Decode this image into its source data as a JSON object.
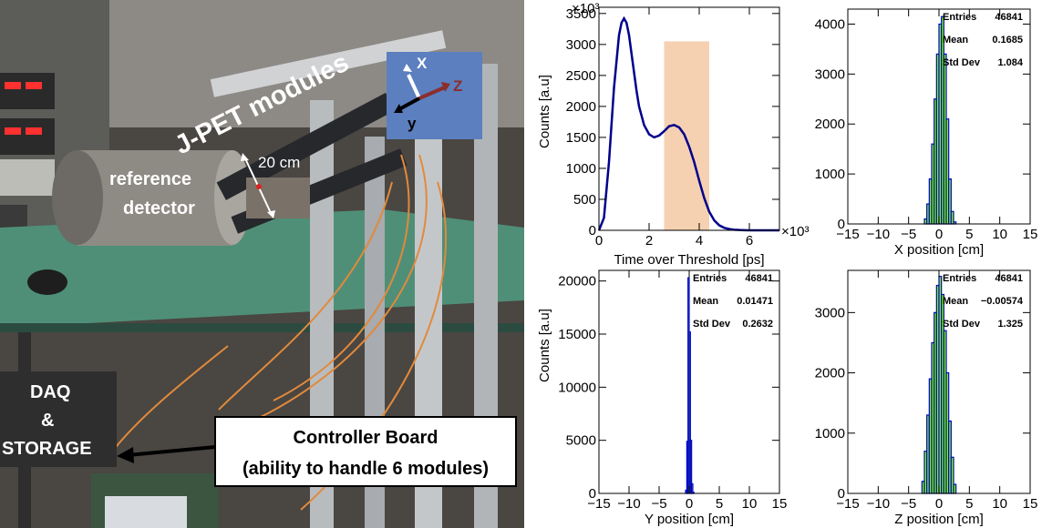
{
  "photo": {
    "label_modules": "J-PET modules",
    "label_distance": "20 cm",
    "label_reference": [
      "reference",
      "detector"
    ],
    "label_daq": [
      "DAQ",
      "&",
      "STORAGE"
    ],
    "label_controller": [
      "Controller Board",
      "(ability to handle 6 modules)"
    ],
    "axes_labels": {
      "x": "X",
      "y": "y",
      "z": "Z"
    }
  },
  "chart_data": [
    {
      "type": "line",
      "xlabel": "Time over Threshold [ps]",
      "ylabel": "Counts [a.u]",
      "x_multiplier_label": "×10³",
      "y_multiplier_label": "×10³",
      "xlim": [
        0,
        7200
      ],
      "ylim": [
        0,
        3600
      ],
      "xticks": [
        0,
        2000,
        4000,
        6000
      ],
      "yticks": [
        0,
        500,
        1000,
        1500,
        2000,
        2500,
        3000,
        3500
      ],
      "x": [
        0,
        200,
        400,
        600,
        800,
        900,
        1000,
        1100,
        1200,
        1300,
        1400,
        1500,
        1600,
        1800,
        2000,
        2200,
        2400,
        2600,
        2800,
        3000,
        3200,
        3400,
        3600,
        3800,
        4000,
        4200,
        4400,
        4600,
        4800,
        5000,
        5200,
        5400,
        5600,
        5800,
        6000,
        6200,
        6400,
        6600,
        6800,
        7000,
        7200
      ],
      "values": [
        0,
        200,
        1100,
        2300,
        3150,
        3350,
        3420,
        3350,
        3150,
        2850,
        2550,
        2250,
        2000,
        1700,
        1550,
        1500,
        1530,
        1600,
        1680,
        1700,
        1660,
        1550,
        1350,
        1100,
        800,
        520,
        300,
        160,
        80,
        40,
        20,
        10,
        5,
        2,
        0,
        0,
        0,
        0,
        0,
        0,
        0
      ],
      "highlight_band": [
        2600,
        4400
      ],
      "line_color": "#00008b",
      "band_color": "#f3c9a3"
    },
    {
      "type": "bar",
      "xlabel": "X position [cm]",
      "ylabel": "",
      "xlim": [
        -15,
        15
      ],
      "ylim": [
        0,
        4300
      ],
      "xticks": [
        -15,
        -10,
        -5,
        0,
        5,
        10,
        15
      ],
      "yticks": [
        0,
        1000,
        2000,
        3000,
        4000
      ],
      "stats": {
        "Entries": "46841",
        "Mean": "0.1685",
        "Std Dev": "1.084"
      },
      "bin_width": 0.4,
      "x": [
        -2.2,
        -1.8,
        -1.4,
        -1.0,
        -0.6,
        -0.2,
        0.2,
        0.6,
        1.0,
        1.4,
        1.8,
        2.2,
        2.6
      ],
      "values": [
        100,
        400,
        900,
        1600,
        2500,
        3400,
        4000,
        4150,
        3400,
        2100,
        900,
        250,
        40
      ],
      "fill_color": "#7cfc00",
      "line_color": "#0000cd"
    },
    {
      "type": "bar",
      "xlabel": "Y position [cm]",
      "ylabel": "Counts [a.u]",
      "xlim": [
        -15,
        15
      ],
      "ylim": [
        0,
        21000
      ],
      "xticks": [
        -15,
        -10,
        -5,
        0,
        5,
        10,
        15
      ],
      "yticks": [
        0,
        5000,
        10000,
        15000,
        20000
      ],
      "stats": {
        "Entries": "46841",
        "Mean": "0.01471",
        "Std Dev": "0.2632"
      },
      "bin_width": 0.2,
      "x": [
        -0.5,
        -0.3,
        -0.1,
        0.1,
        0.3,
        0.5,
        0.7
      ],
      "values": [
        300,
        4900,
        20300,
        15200,
        5000,
        900,
        100
      ],
      "fill_color": "#7cfc00",
      "line_color": "#0000cd"
    },
    {
      "type": "bar",
      "xlabel": "Z position [cm]",
      "ylabel": "",
      "xlim": [
        -15,
        15
      ],
      "ylim": [
        0,
        3700
      ],
      "xticks": [
        -15,
        -10,
        -5,
        0,
        5,
        10,
        15
      ],
      "yticks": [
        0,
        1000,
        2000,
        3000
      ],
      "stats": {
        "Entries": "46841",
        "Mean": "-0.00574",
        "Std Dev": "1.325"
      },
      "bin_width": 0.4,
      "x": [
        -2.6,
        -2.2,
        -1.8,
        -1.4,
        -1.0,
        -0.6,
        -0.2,
        0.2,
        0.6,
        1.0,
        1.4,
        1.8,
        2.2,
        2.6
      ],
      "values": [
        200,
        700,
        1300,
        1900,
        2500,
        3000,
        3450,
        3600,
        3300,
        2700,
        2000,
        1200,
        600,
        150
      ],
      "fill_color": "#7cfc00",
      "line_color": "#0000cd"
    }
  ]
}
